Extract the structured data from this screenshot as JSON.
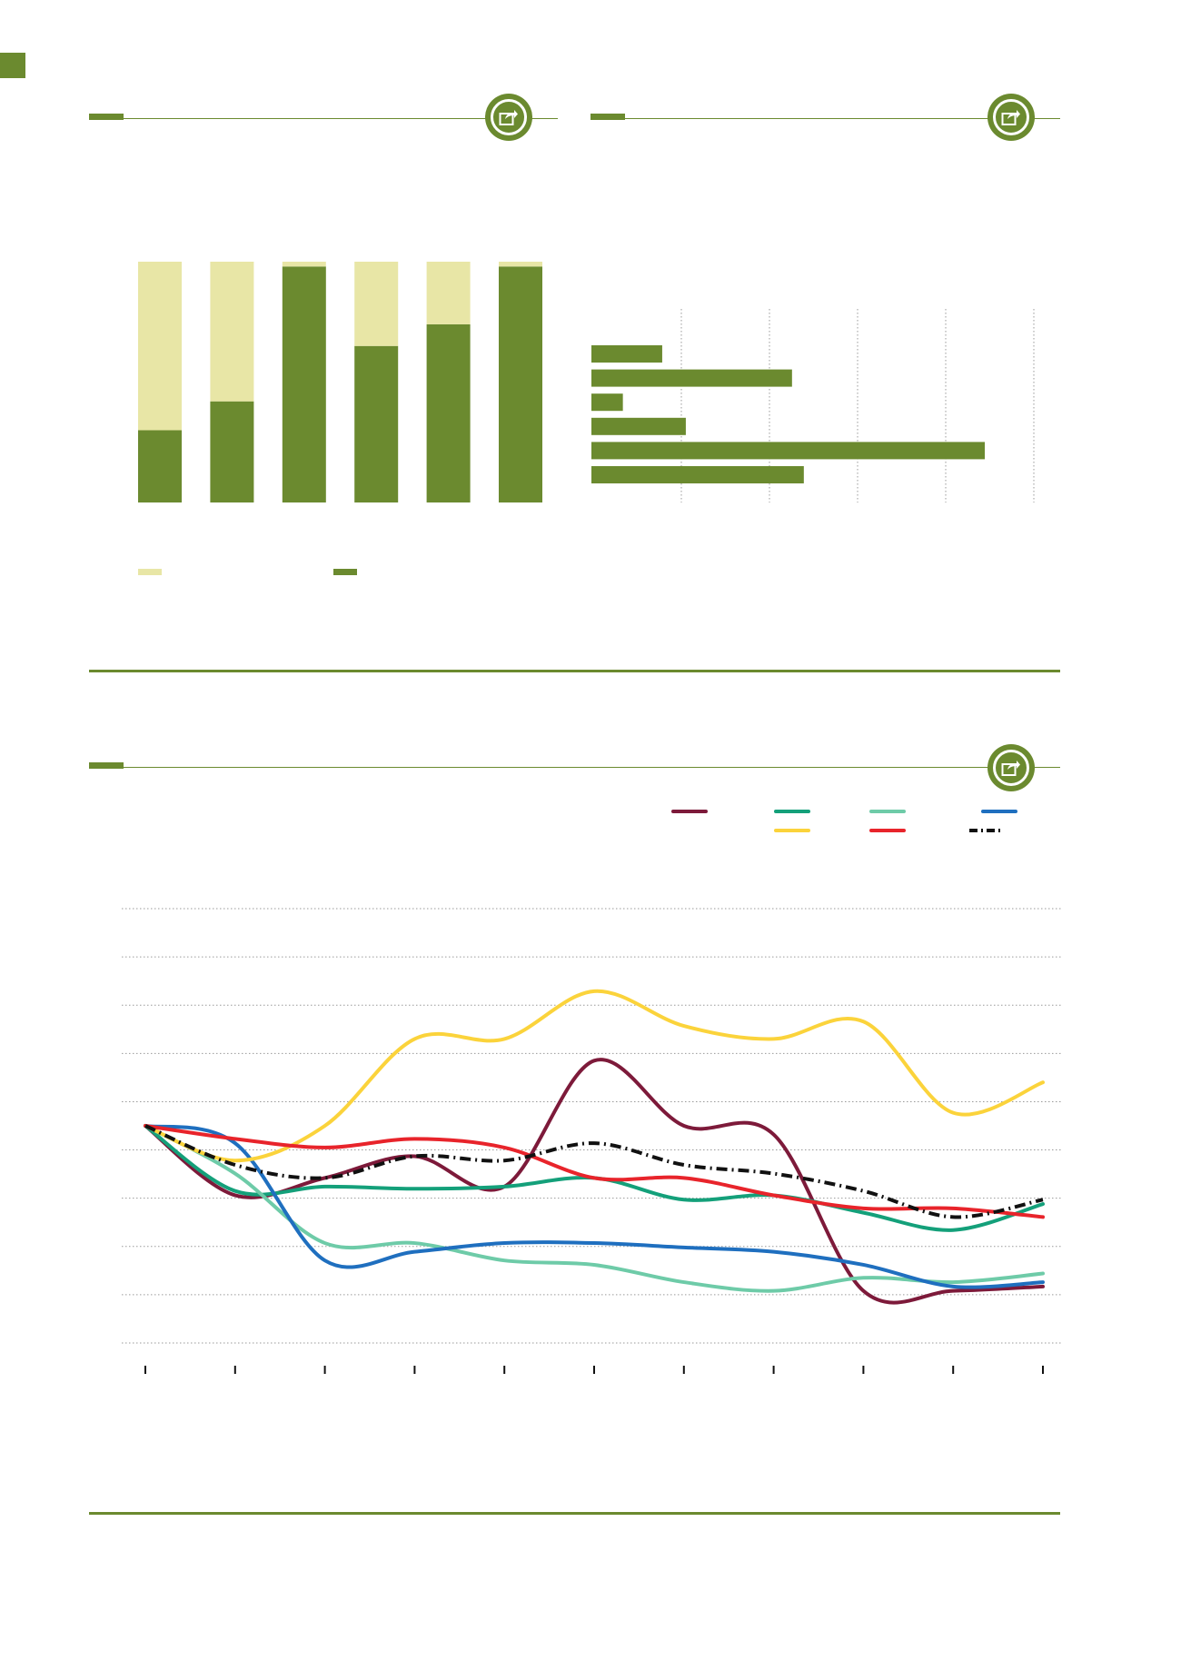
{
  "colors": {
    "accent": "#6b8a2f",
    "light": "#e8e6a6",
    "grid": "#9a9a9a"
  },
  "icons": [
    "share-icon"
  ],
  "chart_data": [
    {
      "type": "bar",
      "stacked": true,
      "orientation": "vertical",
      "categories": [
        "",
        "",
        "",
        "",
        "",
        ""
      ],
      "ylim": [
        0,
        100
      ],
      "series": [
        {
          "color": "#6b8a2f",
          "values": [
            30,
            42,
            98,
            65,
            74,
            98
          ]
        },
        {
          "color": "#e8e6a6",
          "values": [
            70,
            58,
            2,
            35,
            26,
            2
          ]
        }
      ],
      "legend": {
        "position": "bottom",
        "entries": [
          {
            "label": "",
            "color": "#e8e6a6"
          },
          {
            "label": "",
            "color": "#6b8a2f"
          }
        ]
      }
    },
    {
      "type": "bar",
      "orientation": "horizontal",
      "categories": [
        "",
        "",
        "",
        "",
        "",
        ""
      ],
      "xlim": [
        0,
        100
      ],
      "grid": true,
      "values": [
        18,
        51,
        8,
        24,
        100,
        54
      ],
      "color": "#6b8a2f"
    },
    {
      "type": "line",
      "x": [
        0,
        1,
        2,
        3,
        4,
        5,
        6,
        7,
        8,
        9,
        10
      ],
      "ylim": [
        50,
        150
      ],
      "grid": true,
      "legend": {
        "position": "top-right"
      },
      "series": [
        {
          "color": "#7d1a3a",
          "dash": "solid",
          "values": [
            100,
            84,
            88,
            93,
            86,
            115,
            100,
            98,
            62,
            62,
            63
          ]
        },
        {
          "color": "#14a07a",
          "dash": "solid",
          "values": [
            100,
            85,
            86,
            85.5,
            86,
            88,
            83,
            84,
            80,
            76,
            82
          ]
        },
        {
          "color": "#6ecba8",
          "dash": "solid",
          "values": [
            100,
            89,
            73,
            73,
            69,
            68,
            64,
            62,
            65,
            64,
            66
          ]
        },
        {
          "color": "#1f6fbf",
          "dash": "solid",
          "values": [
            100,
            96,
            69,
            71,
            73,
            73,
            72,
            71,
            68,
            63,
            64
          ]
        },
        {
          "color": "#fbd33b",
          "dash": "solid",
          "values": [
            100,
            92,
            100,
            120,
            120,
            131,
            123,
            120,
            124,
            103,
            110
          ]
        },
        {
          "color": "#e8242b",
          "dash": "solid",
          "values": [
            100,
            97,
            95,
            97,
            95,
            88,
            88,
            84,
            81,
            81,
            79
          ]
        },
        {
          "color": "#111111",
          "dash": "dashdot",
          "values": [
            100,
            91,
            88,
            93,
            92,
            96,
            91,
            89,
            85,
            79,
            83
          ]
        }
      ]
    }
  ]
}
